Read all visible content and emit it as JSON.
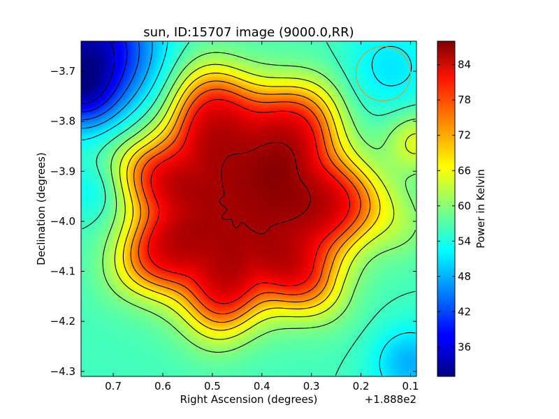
{
  "chart_data": {
    "type": "heatmap",
    "title": "sun, ID:15707 image (9000.0,RR)",
    "xlabel": "Right Ascension (degrees)",
    "ylabel": "Declination (degrees)",
    "x_offset_label": "+1.888e2",
    "xlim": [
      0.765,
      0.088
    ],
    "ylim": [
      -4.31,
      -3.64
    ],
    "x_ticks": [
      0.7,
      0.6,
      0.5,
      0.4,
      0.3,
      0.2,
      0.1
    ],
    "x_tick_labels": [
      "0.7",
      "0.6",
      "0.5",
      "0.4",
      "0.3",
      "0.2",
      "0.1"
    ],
    "y_ticks": [
      -3.7,
      -3.8,
      -3.9,
      -4.0,
      -4.1,
      -4.2,
      -4.3
    ],
    "y_tick_labels": [
      "−3.7",
      "−3.8",
      "−3.9",
      "−4.0",
      "−4.1",
      "−4.2",
      "−4.3"
    ],
    "colorbar": {
      "label": "Power in Kelvin",
      "range": [
        31,
        88
      ],
      "ticks": [
        36,
        42,
        48,
        54,
        60,
        66,
        72,
        78,
        84
      ],
      "tick_labels": [
        "36",
        "42",
        "48",
        "54",
        "60",
        "66",
        "72",
        "78",
        "84"
      ],
      "colormap": "jet"
    },
    "beam_circle": {
      "ra": 0.155,
      "dec": -3.705,
      "radius_deg": 0.055,
      "color": "#c8a040"
    },
    "contour_levels": [
      36,
      40,
      44,
      48,
      52,
      56,
      60,
      64,
      68,
      72,
      76,
      80,
      86
    ],
    "grid": false
  }
}
